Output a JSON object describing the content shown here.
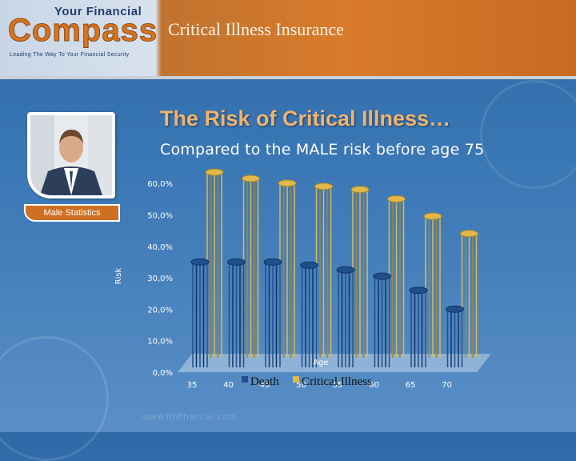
{
  "header": {
    "logo_line1": "Your Financial",
    "logo_main": "Compass",
    "logo_tagline": "Leading The Way To Your Financial Security",
    "title": "Critical Illness Insurance"
  },
  "slide": {
    "title": "The Risk of Critical Illness…",
    "subtitle": "Compared to the MALE risk before age 75",
    "badge": "Male Statistics",
    "footer_url": "www.fmfinancial.com"
  },
  "colors": {
    "death": "#1f4f8c",
    "critical_illness": "#e2b84a",
    "accent": "#d97b2a"
  },
  "chart_data": {
    "type": "bar",
    "title": "",
    "xlabel": "Age",
    "ylabel": "Risk",
    "ylim": [
      0,
      60
    ],
    "yticks": [
      "0,0%",
      "10,0%",
      "20,0%",
      "30,0%",
      "40,0%",
      "50,0%",
      "60,0%"
    ],
    "categories": [
      "35",
      "40",
      "45",
      "50",
      "55",
      "60",
      "65",
      "70"
    ],
    "series": [
      {
        "name": "Death",
        "values": [
          33.5,
          33.5,
          33.5,
          32.5,
          31,
          29,
          24.5,
          18.5
        ]
      },
      {
        "name": "Critical Illness",
        "values": [
          59,
          57,
          55.5,
          54.5,
          53.5,
          50.5,
          45,
          39.5
        ]
      }
    ],
    "legend_position": "bottom",
    "grid": false
  }
}
